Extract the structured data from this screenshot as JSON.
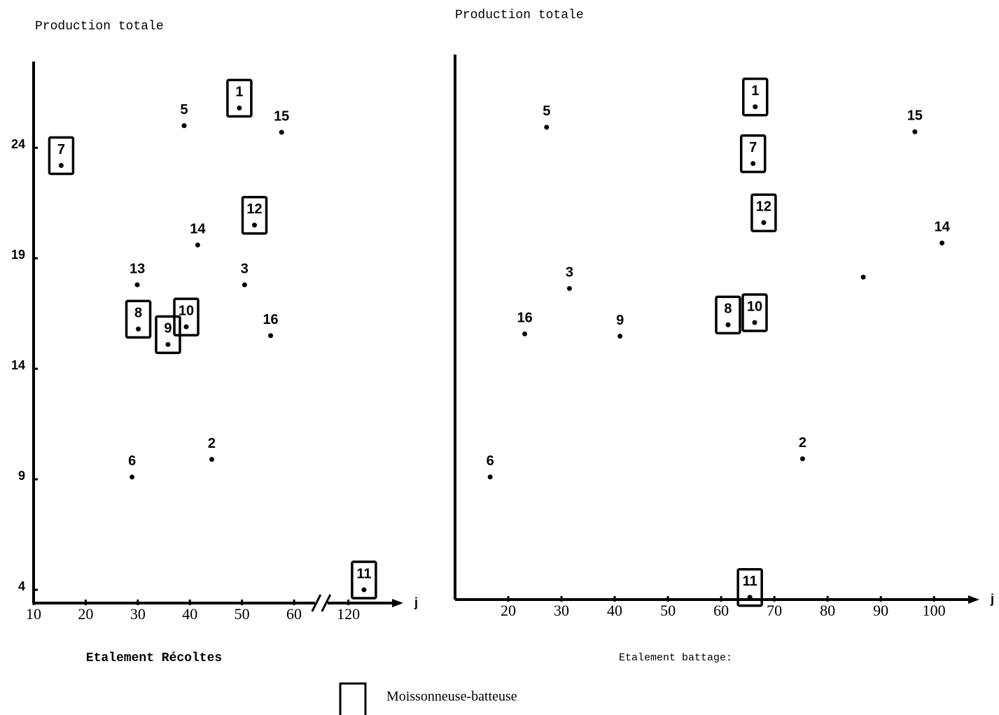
{
  "chart_data": [
    {
      "type": "scatter",
      "title": "Production totale",
      "xlabel": "Etalement Récoltes",
      "x_axis_end": "j",
      "xlim": [
        10,
        130
      ],
      "xbreak": [
        64,
        116
      ],
      "xticks": [
        10,
        20,
        30,
        40,
        50,
        60,
        120
      ],
      "ylim": [
        3.4,
        27.9
      ],
      "yticks": [
        4,
        9,
        14,
        19,
        24
      ],
      "labels": [
        "1",
        "5",
        "15",
        "7",
        "12",
        "14",
        "13",
        "3",
        "8",
        "9",
        "10",
        "16",
        "2",
        "6",
        "11"
      ],
      "x": [
        49.5,
        38.9,
        57.6,
        15.3,
        52.4,
        41.5,
        29.9,
        50.5,
        30.1,
        35.8,
        39.3,
        55.5,
        44.2,
        28.9,
        123
      ],
      "y": [
        25.8,
        25.0,
        24.7,
        23.2,
        20.5,
        19.6,
        17.8,
        17.8,
        15.8,
        15.1,
        15.9,
        15.5,
        9.9,
        9.1,
        4.0
      ],
      "boxed": [
        true,
        false,
        false,
        true,
        true,
        false,
        false,
        false,
        true,
        true,
        true,
        false,
        false,
        false,
        true
      ]
    },
    {
      "type": "scatter",
      "title": "Production totale",
      "xlabel": "Etalement battage:",
      "x_axis_end": "j",
      "xlim": [
        10,
        108
      ],
      "xticks": [
        20,
        30,
        40,
        50,
        60,
        70,
        80,
        90,
        100
      ],
      "ylim": [
        4,
        28
      ],
      "labels": [
        "1",
        "5",
        "15",
        "7",
        "12",
        "14",
        "3",
        null,
        "16",
        "9",
        "8",
        "10",
        "2",
        "6",
        "11"
      ],
      "x": [
        66.4,
        27.2,
        96.4,
        66.0,
        68.0,
        101.5,
        31.5,
        86.7,
        23.1,
        41.0,
        61.3,
        66.3,
        75.3,
        16.6,
        65.4
      ],
      "y": [
        25.7,
        24.8,
        24.6,
        23.2,
        20.6,
        19.7,
        17.7,
        18.2,
        15.7,
        15.6,
        16.1,
        16.2,
        10.2,
        9.4,
        4.1
      ],
      "boxed": [
        true,
        false,
        false,
        true,
        true,
        false,
        false,
        false,
        false,
        false,
        true,
        true,
        false,
        false,
        true
      ]
    }
  ],
  "legend": {
    "label": "Moissonneuse-batteuse"
  }
}
